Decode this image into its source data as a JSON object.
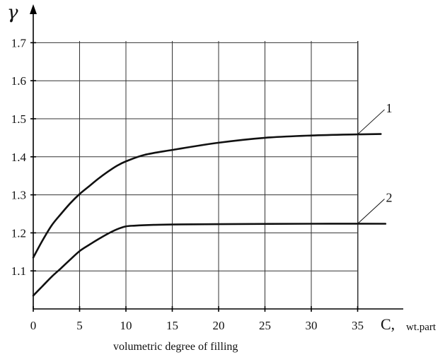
{
  "chart_data": {
    "type": "line",
    "ylabel": "γ",
    "xlabel": "C,",
    "xunit": "wt.part",
    "caption": "volumetric degree of filling",
    "xlim": [
      0,
      40
    ],
    "ylim": [
      1.0,
      1.7
    ],
    "x_ticks": [
      0,
      5,
      10,
      15,
      20,
      25,
      30,
      35
    ],
    "y_ticks": [
      1.1,
      1.2,
      1.3,
      1.4,
      1.5,
      1.6,
      1.7
    ],
    "grid": true,
    "series": [
      {
        "name": "1",
        "x": [
          0,
          1,
          2,
          3,
          4,
          5,
          6,
          7,
          8,
          9,
          10,
          12,
          15,
          20,
          25,
          30,
          35,
          37.5
        ],
        "y": [
          1.135,
          1.18,
          1.22,
          1.25,
          1.278,
          1.302,
          1.322,
          1.342,
          1.36,
          1.376,
          1.388,
          1.405,
          1.418,
          1.437,
          1.45,
          1.456,
          1.459,
          1.46
        ]
      },
      {
        "name": "2",
        "x": [
          0,
          1,
          2,
          3,
          4,
          5,
          6,
          7,
          8,
          9,
          10,
          11,
          13,
          15,
          20,
          30,
          38
        ],
        "y": [
          1.035,
          1.06,
          1.085,
          1.107,
          1.13,
          1.152,
          1.168,
          1.183,
          1.197,
          1.209,
          1.217,
          1.219,
          1.221,
          1.222,
          1.223,
          1.224,
          1.224
        ]
      }
    ]
  }
}
